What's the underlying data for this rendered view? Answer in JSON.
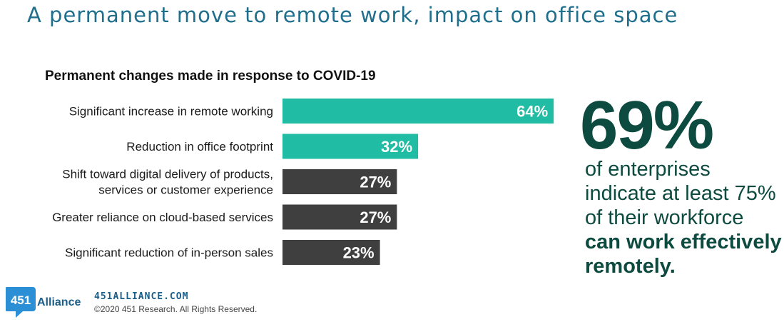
{
  "title": "A permanent move to remote work, impact on office space",
  "chart_data": {
    "type": "bar",
    "orientation": "horizontal",
    "title": "Permanent changes made in response to COVID-19",
    "categories": [
      [
        "Significant increase in remote working"
      ],
      [
        "Reduction in office footprint"
      ],
      [
        "Shift toward digital delivery of products,",
        "services or customer experience"
      ],
      [
        "Greater reliance on cloud-based services"
      ],
      [
        "Significant reduction of in-person sales"
      ]
    ],
    "values": [
      64,
      32,
      27,
      27,
      23
    ],
    "value_labels": [
      "64%",
      "32%",
      "27%",
      "27%",
      "23%"
    ],
    "bar_colors": [
      "#20bca4",
      "#20bca4",
      "#3f3f3f",
      "#3f3f3f",
      "#3f3f3f"
    ],
    "xlabel": "",
    "ylabel": ""
  },
  "callout": {
    "stat": "69%",
    "text_plain": "of enterprises indicate at least 75% of their workforce ",
    "text_bold": "can work effectively remotely."
  },
  "footer": {
    "logo_number": "451",
    "logo_word": "Alliance",
    "website": "451ALLIANCE.COM",
    "copyright": "©2020 451 Research. All Rights Reserved."
  },
  "colors": {
    "title": "#1f6e8c",
    "highlight_bar": "#20bca4",
    "default_bar": "#3f3f3f",
    "callout": "#0d4a3f",
    "logo_blue": "#2b8fd6"
  }
}
